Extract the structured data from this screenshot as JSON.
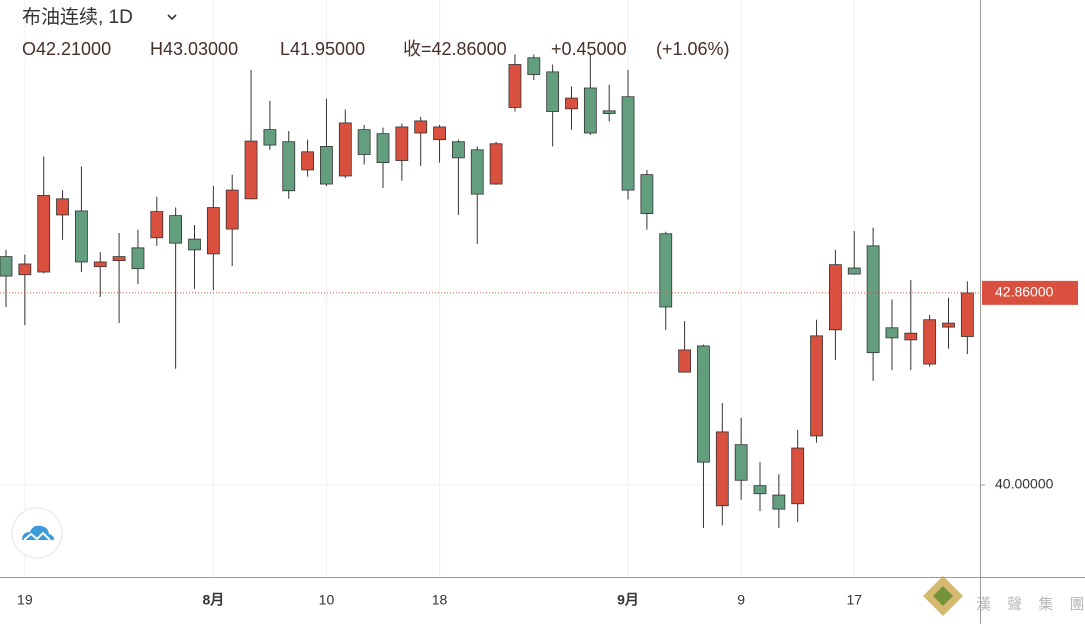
{
  "chart_data": {
    "type": "candlestick",
    "title": "布油连续, 1D",
    "info": [
      "O42.21000",
      "H43.03000",
      "L41.95000",
      "收=42.86000",
      "+0.45000",
      "(+1.06%)"
    ],
    "watermark": "漢 聲 集 團",
    "categories": [
      null,
      "19",
      null,
      null,
      null,
      null,
      null,
      null,
      null,
      null,
      null,
      "8月",
      null,
      null,
      null,
      null,
      null,
      "10",
      null,
      null,
      null,
      null,
      null,
      "18",
      null,
      null,
      null,
      null,
      null,
      null,
      null,
      null,
      null,
      "9月",
      null,
      null,
      null,
      null,
      null,
      "9",
      null,
      null,
      null,
      null,
      null,
      "17",
      null,
      null,
      null,
      null,
      null,
      null
    ],
    "open": [
      43.4,
      43.13,
      43.17,
      44.02,
      44.08,
      43.25,
      43.34,
      43.53,
      43.68,
      44.01,
      43.66,
      43.44,
      43.81,
      44.26,
      45.29,
      45.11,
      44.69,
      45.04,
      44.6,
      45.29,
      45.23,
      44.83,
      45.24,
      45.14,
      45.11,
      44.99,
      44.48,
      45.62,
      46.36,
      46.15,
      45.6,
      45.91,
      45.57,
      45.78,
      44.62,
      43.74,
      41.68,
      42.07,
      39.69,
      40.6,
      39.99,
      39.85,
      39.72,
      40.73,
      42.31,
      43.23,
      43.56,
      42.34,
      42.16,
      41.8,
      42.35,
      42.21
    ],
    "high": [
      43.5,
      43.43,
      44.89,
      44.39,
      44.74,
      43.47,
      43.75,
      43.8,
      44.29,
      44.13,
      43.87,
      44.45,
      44.62,
      46.18,
      45.72,
      45.27,
      45.14,
      45.75,
      45.59,
      45.36,
      45.32,
      45.38,
      45.48,
      45.36,
      45.14,
      45.04,
      45.11,
      46.41,
      46.41,
      46.26,
      45.93,
      46.41,
      45.96,
      46.18,
      44.69,
      43.77,
      42.44,
      42.09,
      41.22,
      41.0,
      40.34,
      40.16,
      40.82,
      42.46,
      43.5,
      43.78,
      43.83,
      42.76,
      43.05,
      42.53,
      42.79,
      43.03
    ],
    "low": [
      42.65,
      42.38,
      43.15,
      43.65,
      43.17,
      42.8,
      42.41,
      42.99,
      43.56,
      41.73,
      42.92,
      42.9,
      43.26,
      44.25,
      44.99,
      44.26,
      44.59,
      44.45,
      44.57,
      44.77,
      44.42,
      44.53,
      44.75,
      44.8,
      44.02,
      43.59,
      44.47,
      45.56,
      46.03,
      45.04,
      45.29,
      45.21,
      45.41,
      44.25,
      43.8,
      42.31,
      41.68,
      39.36,
      39.4,
      39.78,
      39.61,
      39.36,
      39.45,
      40.63,
      41.86,
      43.13,
      41.55,
      41.71,
      41.71,
      41.76,
      42.03,
      41.95
    ],
    "close": [
      43.11,
      43.29,
      44.31,
      44.26,
      43.32,
      43.32,
      43.4,
      43.22,
      44.07,
      43.6,
      43.5,
      44.13,
      44.39,
      45.12,
      45.06,
      44.38,
      44.96,
      44.48,
      45.39,
      44.92,
      44.8,
      45.33,
      45.42,
      45.33,
      44.87,
      44.33,
      45.08,
      46.26,
      46.11,
      45.56,
      45.76,
      45.24,
      45.53,
      44.39,
      44.04,
      42.65,
      42.01,
      40.34,
      40.79,
      40.07,
      39.87,
      39.64,
      40.55,
      42.22,
      43.28,
      43.14,
      41.97,
      42.19,
      42.26,
      42.46,
      42.41,
      42.86
    ],
    "up_color": "#d9503f",
    "down_color": "#639f7f",
    "ylim": [
      38.63,
      47.22
    ],
    "yticks": [
      {
        "value": 40,
        "label": "40.00000"
      }
    ],
    "last_price": {
      "value": 42.86,
      "label": "42.86000"
    },
    "grid": true
  }
}
